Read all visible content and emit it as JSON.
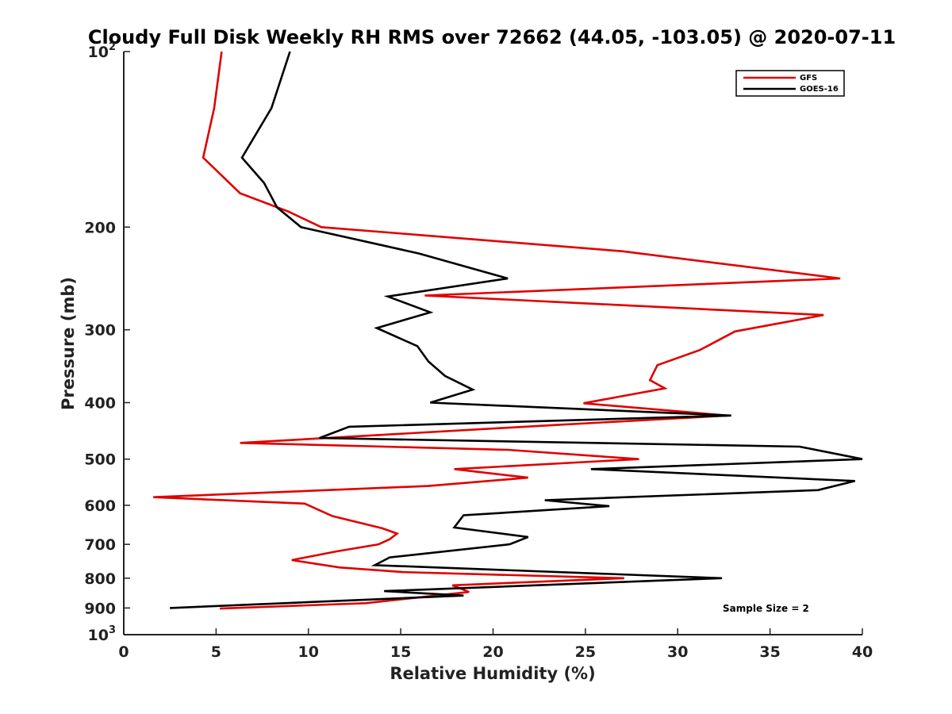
{
  "chart_data": {
    "type": "line",
    "title": "Cloudy Full Disk Weekly RH RMS over 72662 (44.05, -103.05) @ 2020-07-11",
    "xlabel": "Relative Humidity (%)",
    "ylabel": "Pressure (mb)",
    "xlim": [
      0,
      40
    ],
    "ylim": [
      1000,
      100
    ],
    "y_scale": "log",
    "y_reversed": true,
    "grid": false,
    "legend_position": "top-right",
    "x_ticks": [
      {
        "value": 0,
        "label": "0"
      },
      {
        "value": 5,
        "label": "5"
      },
      {
        "value": 10,
        "label": "10"
      },
      {
        "value": 15,
        "label": "15"
      },
      {
        "value": 20,
        "label": "20"
      },
      {
        "value": 25,
        "label": "25"
      },
      {
        "value": 30,
        "label": "30"
      },
      {
        "value": 35,
        "label": "35"
      },
      {
        "value": 40,
        "label": "40"
      }
    ],
    "y_ticks": [
      {
        "value": 100,
        "label": "10",
        "sup": "2"
      },
      {
        "value": 200,
        "label": "200",
        "sup": ""
      },
      {
        "value": 300,
        "label": "300",
        "sup": ""
      },
      {
        "value": 400,
        "label": "400",
        "sup": ""
      },
      {
        "value": 500,
        "label": "500",
        "sup": ""
      },
      {
        "value": 600,
        "label": "600",
        "sup": ""
      },
      {
        "value": 700,
        "label": "700",
        "sup": ""
      },
      {
        "value": 800,
        "label": "800",
        "sup": ""
      },
      {
        "value": 900,
        "label": "900",
        "sup": ""
      },
      {
        "value": 1000,
        "label": "10",
        "sup": "3"
      }
    ],
    "series": [
      {
        "name": "GFS",
        "color": "#e00000",
        "points": [
          {
            "x": 5.3,
            "p": 100
          },
          {
            "x": 4.9,
            "p": 125
          },
          {
            "x": 4.3,
            "p": 152
          },
          {
            "x": 6.3,
            "p": 175
          },
          {
            "x": 8.9,
            "p": 188
          },
          {
            "x": 10.7,
            "p": 200
          },
          {
            "x": 27.0,
            "p": 220
          },
          {
            "x": 38.8,
            "p": 245
          },
          {
            "x": 16.3,
            "p": 262
          },
          {
            "x": 37.9,
            "p": 283
          },
          {
            "x": 33.1,
            "p": 302
          },
          {
            "x": 31.2,
            "p": 325
          },
          {
            "x": 28.9,
            "p": 345
          },
          {
            "x": 28.5,
            "p": 366
          },
          {
            "x": 29.3,
            "p": 378
          },
          {
            "x": 24.9,
            "p": 401
          },
          {
            "x": 32.7,
            "p": 421
          },
          {
            "x": 23.3,
            "p": 437
          },
          {
            "x": 6.3,
            "p": 469
          },
          {
            "x": 20.8,
            "p": 482
          },
          {
            "x": 27.9,
            "p": 500
          },
          {
            "x": 17.9,
            "p": 520
          },
          {
            "x": 21.9,
            "p": 538
          },
          {
            "x": 16.5,
            "p": 556
          },
          {
            "x": 1.6,
            "p": 581
          },
          {
            "x": 9.8,
            "p": 596
          },
          {
            "x": 11.3,
            "p": 626
          },
          {
            "x": 14.0,
            "p": 657
          },
          {
            "x": 14.8,
            "p": 671
          },
          {
            "x": 14.4,
            "p": 686
          },
          {
            "x": 13.8,
            "p": 700
          },
          {
            "x": 11.5,
            "p": 720
          },
          {
            "x": 9.1,
            "p": 745
          },
          {
            "x": 11.7,
            "p": 767
          },
          {
            "x": 15.1,
            "p": 781
          },
          {
            "x": 27.1,
            "p": 800
          },
          {
            "x": 17.8,
            "p": 823
          },
          {
            "x": 18.7,
            "p": 845
          },
          {
            "x": 13.1,
            "p": 883
          },
          {
            "x": 5.2,
            "p": 902
          }
        ]
      },
      {
        "name": "GOES-16",
        "color": "#000000",
        "points": [
          {
            "x": 9.0,
            "p": 100
          },
          {
            "x": 8.0,
            "p": 125
          },
          {
            "x": 6.4,
            "p": 152
          },
          {
            "x": 7.6,
            "p": 168
          },
          {
            "x": 8.3,
            "p": 185
          },
          {
            "x": 9.6,
            "p": 200
          },
          {
            "x": 16.0,
            "p": 222
          },
          {
            "x": 20.8,
            "p": 245
          },
          {
            "x": 14.3,
            "p": 263
          },
          {
            "x": 16.6,
            "p": 280
          },
          {
            "x": 13.7,
            "p": 298
          },
          {
            "x": 15.9,
            "p": 320
          },
          {
            "x": 16.5,
            "p": 340
          },
          {
            "x": 17.4,
            "p": 360
          },
          {
            "x": 18.9,
            "p": 380
          },
          {
            "x": 16.6,
            "p": 400
          },
          {
            "x": 32.9,
            "p": 421
          },
          {
            "x": 12.2,
            "p": 440
          },
          {
            "x": 10.6,
            "p": 460
          },
          {
            "x": 36.6,
            "p": 476
          },
          {
            "x": 40.0,
            "p": 500
          },
          {
            "x": 25.3,
            "p": 520
          },
          {
            "x": 39.6,
            "p": 545
          },
          {
            "x": 37.6,
            "p": 565
          },
          {
            "x": 22.8,
            "p": 588
          },
          {
            "x": 26.3,
            "p": 602
          },
          {
            "x": 18.4,
            "p": 624
          },
          {
            "x": 17.9,
            "p": 655
          },
          {
            "x": 21.9,
            "p": 680
          },
          {
            "x": 20.9,
            "p": 700
          },
          {
            "x": 14.4,
            "p": 737
          },
          {
            "x": 13.6,
            "p": 760
          },
          {
            "x": 32.4,
            "p": 800
          },
          {
            "x": 14.1,
            "p": 842
          },
          {
            "x": 18.4,
            "p": 857
          },
          {
            "x": 2.5,
            "p": 900
          }
        ]
      }
    ],
    "annotations": [
      {
        "text": "Sample Size = 2",
        "position": "bottom-right"
      }
    ]
  }
}
